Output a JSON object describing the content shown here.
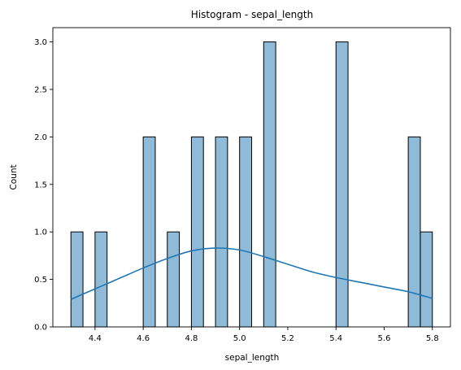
{
  "chart_data": {
    "type": "bar",
    "title": "Histogram - sepal_length",
    "xlabel": "sepal_length",
    "ylabel": "Count",
    "xlim": [
      4.225,
      5.875
    ],
    "ylim": [
      0,
      3.15
    ],
    "xticks": [
      "4.4",
      "4.6",
      "4.8",
      "5.0",
      "5.2",
      "5.4",
      "5.6",
      "5.8"
    ],
    "yticks": [
      "0.0",
      "0.5",
      "1.0",
      "1.5",
      "2.0",
      "2.5",
      "3.0"
    ],
    "bin_start": 4.3,
    "bin_width": 0.05,
    "bins": [
      {
        "x0": 4.3,
        "x1": 4.35,
        "count": 1
      },
      {
        "x0": 4.4,
        "x1": 4.45,
        "count": 1
      },
      {
        "x0": 4.6,
        "x1": 4.65,
        "count": 2
      },
      {
        "x0": 4.7,
        "x1": 4.75,
        "count": 1
      },
      {
        "x0": 4.8,
        "x1": 4.85,
        "count": 2
      },
      {
        "x0": 4.9,
        "x1": 4.95,
        "count": 2
      },
      {
        "x0": 5.0,
        "x1": 5.05,
        "count": 2
      },
      {
        "x0": 5.1,
        "x1": 5.15,
        "count": 3
      },
      {
        "x0": 5.4,
        "x1": 5.45,
        "count": 3
      },
      {
        "x0": 5.7,
        "x1": 5.75,
        "count": 2
      },
      {
        "x0": 5.75,
        "x1": 5.8,
        "count": 1
      }
    ],
    "kde": {
      "x": [
        4.3,
        4.4,
        4.5,
        4.6,
        4.7,
        4.8,
        4.9,
        5.0,
        5.1,
        5.2,
        5.3,
        5.4,
        5.5,
        5.6,
        5.7,
        5.8
      ],
      "y": [
        0.29,
        0.4,
        0.51,
        0.62,
        0.72,
        0.8,
        0.83,
        0.81,
        0.74,
        0.66,
        0.58,
        0.52,
        0.47,
        0.42,
        0.37,
        0.3
      ]
    },
    "colors": {
      "bar": "#1f77b4",
      "kde": "#1f77b4"
    },
    "grid": false
  }
}
